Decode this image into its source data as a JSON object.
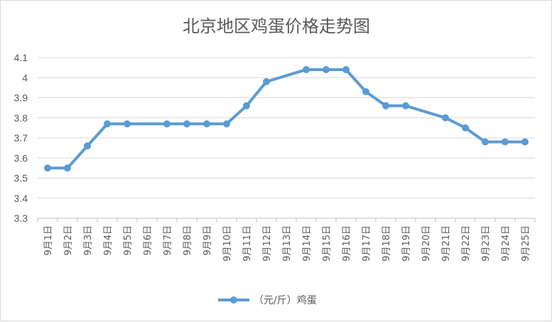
{
  "chart_data": {
    "type": "line",
    "title": "北京地区鸡蛋价格走势图",
    "xlabel": "",
    "ylabel": "",
    "ylim": [
      3.3,
      4.1
    ],
    "yticks": [
      "3.3",
      "3.4",
      "3.5",
      "3.6",
      "3.7",
      "3.8",
      "3.9",
      "4",
      "4.1"
    ],
    "categories": [
      "9月1日",
      "9月2日",
      "9月3日",
      "9月4日",
      "9月5日",
      "9月6日",
      "9月7日",
      "9月8日",
      "9月9日",
      "9月10日",
      "9月11日",
      "9月12日",
      "9月13日",
      "9月14日",
      "9月15日",
      "9月16日",
      "9月17日",
      "9月18日",
      "9月19日",
      "9月20日",
      "9月21日",
      "9月22日",
      "9月23日",
      "9月24日",
      "9月25日"
    ],
    "series": [
      {
        "name": "（元/斤）鸡蛋",
        "color": "#5b9bd5",
        "values": [
          3.55,
          3.55,
          3.66,
          3.77,
          3.77,
          null,
          3.77,
          3.77,
          3.77,
          3.77,
          3.86,
          3.98,
          null,
          4.04,
          4.04,
          4.04,
          3.93,
          3.86,
          3.86,
          null,
          3.8,
          3.75,
          3.68,
          3.68,
          3.68
        ]
      }
    ],
    "grid": true,
    "legend_position": "bottom"
  }
}
